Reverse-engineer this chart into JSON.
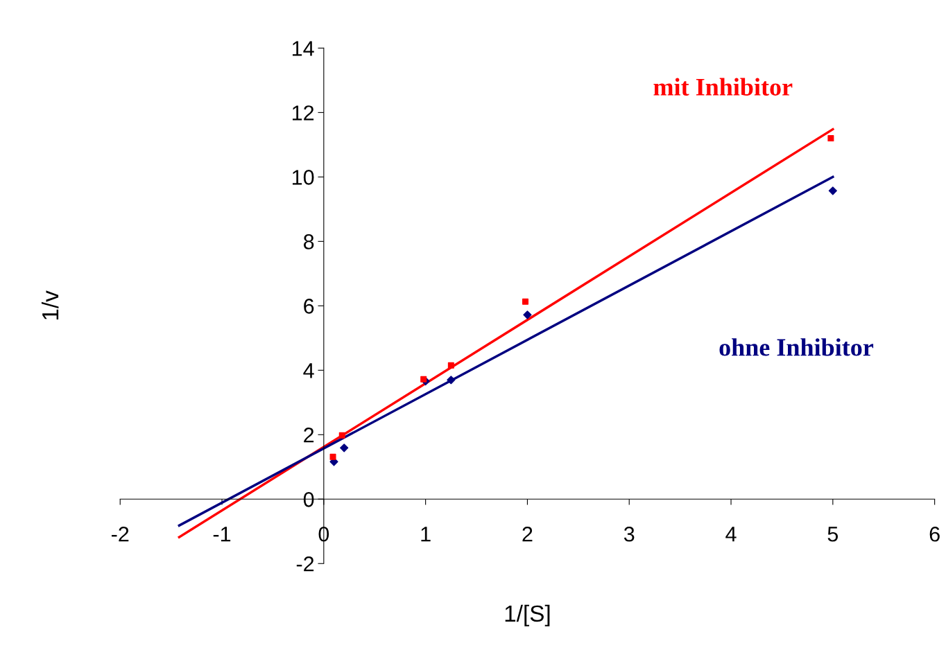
{
  "chart_data": {
    "type": "scatter",
    "xlabel": "1/[S]",
    "ylabel": "1/v",
    "xlim": [
      -2,
      6
    ],
    "ylim": [
      -2,
      14
    ],
    "xticks": [
      -2,
      -1,
      0,
      1,
      2,
      3,
      4,
      5,
      6
    ],
    "yticks": [
      -2,
      0,
      2,
      4,
      6,
      8,
      10,
      12,
      14
    ],
    "grid": false,
    "legend": false,
    "series": [
      {
        "name": "mit Inhibitor",
        "color": "#ff0000",
        "marker": "square",
        "x": [
          0.09,
          0.18,
          0.98,
          1.25,
          1.98,
          4.98
        ],
        "values": [
          1.31,
          1.98,
          3.72,
          4.15,
          6.13,
          11.2
        ]
      },
      {
        "name": "ohne Inhibitor",
        "color": "#000080",
        "marker": "diamond",
        "x": [
          0.1,
          0.2,
          1,
          1.25,
          2,
          5
        ],
        "values": [
          1.16,
          1.59,
          3.66,
          3.7,
          5.72,
          9.57
        ]
      },
      {
        "color": "#ff0000",
        "type": "line",
        "marker": "none",
        "x": [
          -1.42,
          5
        ],
        "values": [
          -1.18,
          11.48
        ]
      },
      {
        "color": "#000080",
        "type": "line",
        "marker": "none",
        "x": [
          -1.42,
          5
        ],
        "values": [
          -0.82,
          10.0
        ]
      }
    ]
  }
}
